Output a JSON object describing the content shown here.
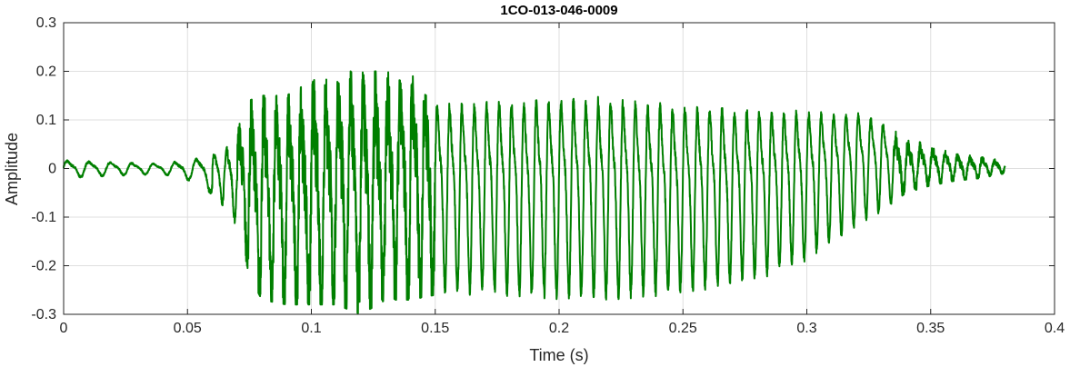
{
  "chart_data": {
    "type": "line",
    "title": "1CO-013-046-0009",
    "xlabel": "Time (s)",
    "ylabel": "Amplitude",
    "xlim": [
      0,
      0.4
    ],
    "ylim": [
      -0.3,
      0.3
    ],
    "grid": true,
    "xticks": [
      0,
      0.05,
      0.1,
      0.15,
      0.2,
      0.25,
      0.3,
      0.35,
      0.4
    ],
    "xtick_labels": [
      "0",
      "0.05",
      "0.1",
      "0.15",
      "0.2",
      "0.25",
      "0.3",
      "0.35",
      "0.4"
    ],
    "yticks": [
      -0.3,
      -0.2,
      -0.1,
      0,
      0.1,
      0.2,
      0.3
    ],
    "ytick_labels": [
      "-0.3",
      "-0.2",
      "-0.1",
      "0",
      "0.1",
      "0.2",
      "0.3"
    ],
    "series": [
      {
        "color": "#007f00",
        "x_start": 0,
        "x_end": 0.38,
        "envelope": {
          "t": [
            0,
            0.02,
            0.04,
            0.055,
            0.065,
            0.07,
            0.075,
            0.08,
            0.09,
            0.1,
            0.11,
            0.12,
            0.13,
            0.14,
            0.15,
            0.17,
            0.2,
            0.22,
            0.25,
            0.28,
            0.3,
            0.32,
            0.33,
            0.335,
            0.34,
            0.35,
            0.36,
            0.37,
            0.38
          ],
          "upper": [
            0.02,
            0.015,
            0.012,
            0.025,
            0.05,
            0.08,
            0.14,
            0.15,
            0.15,
            0.18,
            0.2,
            0.2,
            0.2,
            0.2,
            0.18,
            0.18,
            0.19,
            0.19,
            0.17,
            0.16,
            0.15,
            0.14,
            0.12,
            0.08,
            0.06,
            0.05,
            0.03,
            0.025,
            0.015
          ],
          "lower": [
            -0.02,
            -0.015,
            -0.012,
            -0.03,
            -0.08,
            -0.12,
            -0.22,
            -0.27,
            -0.28,
            -0.28,
            -0.28,
            -0.3,
            -0.27,
            -0.27,
            -0.26,
            -0.26,
            -0.27,
            -0.27,
            -0.26,
            -0.23,
            -0.19,
            -0.12,
            -0.09,
            -0.07,
            -0.05,
            -0.035,
            -0.025,
            -0.02,
            -0.01
          ]
        }
      }
    ]
  }
}
